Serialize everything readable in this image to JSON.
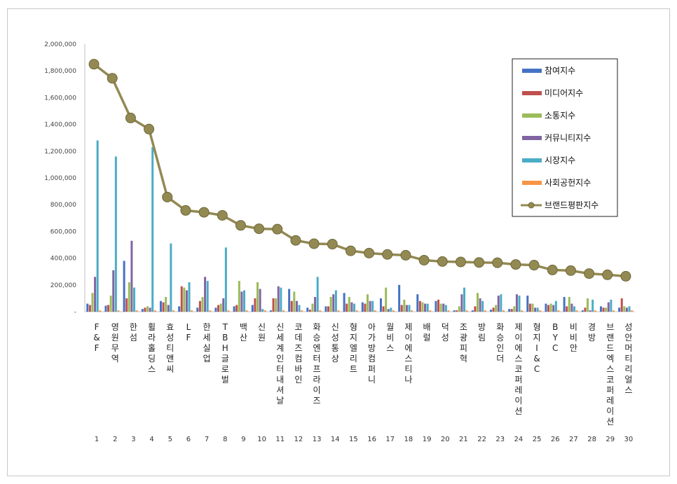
{
  "chart_data": {
    "type": "bar",
    "combo_line_series": "브랜드평판지수",
    "categories": [
      "F&F",
      "영원무역",
      "한섬",
      "휠라홀딩스",
      "효성티앤씨",
      "LF",
      "한세실업",
      "TBH글로벌",
      "백산",
      "신원",
      "신세계인터내셔날",
      "코데즈컴바인",
      "화승엔터프라이즈",
      "신성통상",
      "형지엘리트",
      "아가방컴퍼니",
      "월비스",
      "제이에스티나",
      "배럴",
      "덕성",
      "조광피혁",
      "방림",
      "화승인더",
      "제이에스코퍼레이션",
      "형지I&C",
      "BYC",
      "비비안",
      "경방",
      "브랜드엑스코퍼레이션",
      "성안머티리얼스"
    ],
    "ranks": [
      "1",
      "2",
      "3",
      "4",
      "5",
      "6",
      "7",
      "8",
      "9",
      "10",
      "11",
      "12",
      "13",
      "14",
      "15",
      "16",
      "17",
      "18",
      "19",
      "20",
      "21",
      "22",
      "23",
      "24",
      "25",
      "26",
      "27",
      "28",
      "29",
      "30"
    ],
    "ylim": [
      0,
      2000000
    ],
    "yticks": [
      "-",
      "200,000",
      "400,000",
      "600,000",
      "800,000",
      "1,000,000",
      "1,200,000",
      "1,400,000",
      "1,600,000",
      "1,800,000",
      "2,000,000"
    ],
    "grid": false,
    "legend_position": "top-right",
    "series": [
      {
        "name": "참여지수",
        "color": "#4472C4",
        "values": [
          60000,
          45000,
          380000,
          20000,
          80000,
          40000,
          30000,
          30000,
          40000,
          50000,
          10000,
          170000,
          30000,
          40000,
          140000,
          70000,
          100000,
          200000,
          130000,
          80000,
          10000,
          10000,
          15000,
          20000,
          120000,
          60000,
          110000,
          10000,
          40000,
          30000
        ]
      },
      {
        "name": "미디어지수",
        "color": "#C0504D",
        "values": [
          50000,
          50000,
          100000,
          30000,
          70000,
          190000,
          80000,
          50000,
          50000,
          100000,
          100000,
          80000,
          15000,
          40000,
          60000,
          60000,
          40000,
          50000,
          80000,
          90000,
          10000,
          40000,
          30000,
          20000,
          60000,
          50000,
          40000,
          30000,
          30000,
          100000
        ]
      },
      {
        "name": "소통지수",
        "color": "#9BBB59",
        "values": [
          140000,
          120000,
          220000,
          40000,
          110000,
          180000,
          110000,
          60000,
          230000,
          220000,
          100000,
          150000,
          60000,
          110000,
          110000,
          130000,
          180000,
          90000,
          70000,
          60000,
          40000,
          140000,
          50000,
          40000,
          60000,
          60000,
          110000,
          100000,
          30000,
          40000
        ]
      },
      {
        "name": "커뮤니티지수",
        "color": "#8064A2",
        "values": [
          260000,
          310000,
          530000,
          30000,
          50000,
          160000,
          260000,
          100000,
          150000,
          170000,
          190000,
          80000,
          110000,
          130000,
          70000,
          80000,
          20000,
          50000,
          60000,
          60000,
          130000,
          100000,
          120000,
          130000,
          30000,
          50000,
          60000,
          10000,
          70000,
          30000
        ]
      },
      {
        "name": "시장지수",
        "color": "#4BACC6",
        "values": [
          1280000,
          1160000,
          180000,
          1230000,
          510000,
          220000,
          230000,
          480000,
          160000,
          20000,
          180000,
          50000,
          260000,
          160000,
          60000,
          80000,
          30000,
          50000,
          60000,
          50000,
          180000,
          80000,
          130000,
          120000,
          30000,
          80000,
          40000,
          90000,
          90000,
          40000
        ]
      },
      {
        "name": "사회공헌지수",
        "color": "#F79646",
        "values": [
          10000,
          10000,
          10000,
          10000,
          10000,
          10000,
          10000,
          10000,
          10000,
          10000,
          10000,
          10000,
          10000,
          10000,
          10000,
          10000,
          10000,
          10000,
          10000,
          10000,
          10000,
          10000,
          10000,
          10000,
          10000,
          10000,
          10000,
          10000,
          10000,
          10000
        ]
      },
      {
        "name": "브랜드평판지수",
        "color": "#938953",
        "kind": "line",
        "values": [
          1850000,
          1745000,
          1448000,
          1365000,
          857000,
          757000,
          743000,
          720000,
          645000,
          620000,
          617000,
          533000,
          508000,
          505000,
          455000,
          438000,
          428000,
          422000,
          385000,
          375000,
          372000,
          368000,
          366000,
          353000,
          348000,
          312000,
          307000,
          285000,
          276000,
          265000
        ]
      }
    ]
  }
}
